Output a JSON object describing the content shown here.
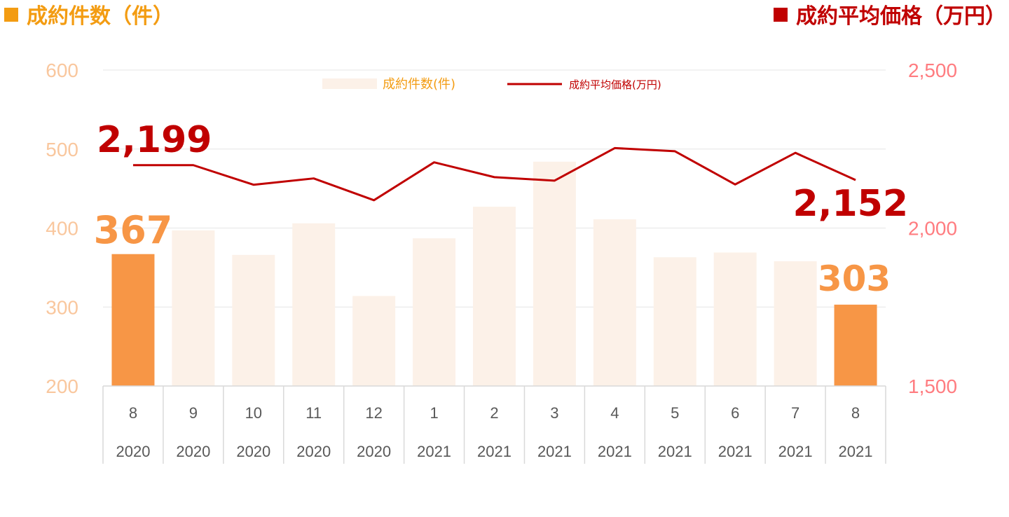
{
  "header": {
    "left_title": "成約件数（件）",
    "right_title": "成約平均価格（万円）"
  },
  "colors": {
    "bar": "#FCF1E8",
    "bar_highlight": "#F79646",
    "line": "#C00000",
    "left_axis": "#F9C79E",
    "right_axis": "#FF7C80",
    "big_left_label": "#F79646",
    "big_line_label": "#C00000"
  },
  "chart_data": {
    "type": "bar",
    "categories": [
      "8",
      "9",
      "10",
      "11",
      "12",
      "1",
      "2",
      "3",
      "4",
      "5",
      "6",
      "7",
      "8"
    ],
    "category_years": [
      "2020",
      "2020",
      "2020",
      "2020",
      "2020",
      "2021",
      "2021",
      "2021",
      "2021",
      "2021",
      "2021",
      "2021",
      "2021"
    ],
    "series": [
      {
        "name": "成約件数(件)",
        "type": "bar",
        "axis": "left",
        "values": [
          367,
          397,
          366,
          406,
          314,
          387,
          427,
          484,
          411,
          363,
          369,
          358,
          303
        ],
        "highlight_indices": [
          0,
          12
        ]
      },
      {
        "name": "成約平均価格(万円)",
        "type": "line",
        "axis": "right",
        "values": [
          2199,
          2199,
          2137,
          2157,
          2088,
          2208,
          2161,
          2150,
          2253,
          2243,
          2138,
          2238,
          2152
        ]
      }
    ],
    "left_axis": {
      "ylim": [
        200,
        600
      ],
      "ticks": [
        "200",
        "300",
        "400",
        "500",
        "600"
      ]
    },
    "right_axis": {
      "ylim": [
        1500,
        2500
      ],
      "ticks": [
        "1,500",
        "2,000",
        "2,500"
      ]
    },
    "data_labels": {
      "first_line": "2,199",
      "last_line": "2,152",
      "first_bar": "367",
      "last_bar": "303"
    },
    "legend_placement": "top-center",
    "grid": true
  }
}
